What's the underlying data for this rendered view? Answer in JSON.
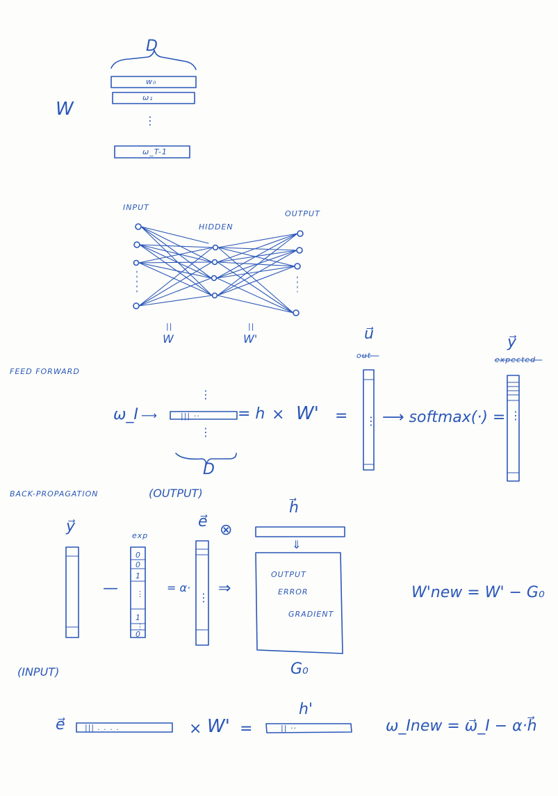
{
  "embedding": {
    "dim": "D",
    "matrix": "W",
    "rows": [
      "w₀",
      "ω₁",
      "⋮",
      "ω_T-1"
    ]
  },
  "network": {
    "input": "INPUT",
    "hidden": "HIDDEN",
    "output": "OUTPUT",
    "w_in": "W",
    "w_out": "W'",
    "eq": "||"
  },
  "feed_forward": {
    "title": "FEED FORWARD",
    "w_i": "ω_I",
    "arrow": "⟶",
    "row_marks": "|||    ··",
    "h_eq": "= h",
    "times": "×",
    "w_prime": "W'",
    "equals": "=",
    "u_label": "u⃗",
    "u_struck": "out",
    "dots": "⋮",
    "dim": "D",
    "softmax": "⟶ softmax(·) =",
    "y_label": "y⃗",
    "y_struck": "expected"
  },
  "backprop_output": {
    "title": "BACK-PROPAGATION",
    "subtitle": "(OUTPUT)",
    "y_label": "y⃗",
    "exp_label": "exp",
    "exp_values": [
      "0",
      "0",
      "1",
      "⋮",
      "1",
      "⋮",
      "0"
    ],
    "minus": "—",
    "alpha_eq": "= α·",
    "e_label": "e⃗",
    "otimes": "⊗",
    "arrow": "⇒",
    "h_label": "h⃗",
    "down_arrow": "⇓",
    "grad_text": [
      "OUTPUT",
      "ERROR",
      "GRADIENT"
    ],
    "g_label": "G₀",
    "update": "W'new = W' − G₀"
  },
  "backprop_input": {
    "title": "(INPUT)",
    "e_label": "e⃗",
    "row_marks": "|||  . . . .",
    "times": "×",
    "w_prime": "W'",
    "equals": "=",
    "h_prime": "h'",
    "h_marks": "||   ··",
    "update": "ω_Inew = ω⃗_I − α·h⃗"
  }
}
